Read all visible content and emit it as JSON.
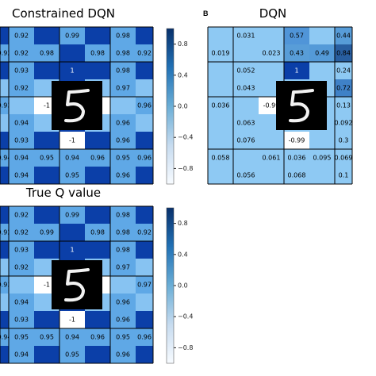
{
  "colors": {
    "background": "#ffffff",
    "grid_line": "#000000",
    "value_1": "#08306b",
    "value_0": "#ffffff",
    "value_neg1": "#ffffff",
    "digit_bg": "#000000",
    "digit_stroke": "#f2f2f2"
  },
  "chart_data": [
    {
      "type": "heatmap",
      "title": "Constrained DQN",
      "rows": [
        [
          null,
          "0.92",
          null,
          "0.99",
          null,
          "0.98",
          null
        ],
        [
          "0.92",
          "0.92",
          "0.98",
          null,
          "0.98",
          "0.98",
          "0.92"
        ],
        [
          null,
          "0.93",
          null,
          "1",
          null,
          "0.98",
          null
        ],
        [
          null,
          "0.92",
          null,
          null,
          null,
          "0.97",
          null
        ],
        [
          "0.93",
          null,
          "-1",
          null,
          "-1",
          null,
          "0.96"
        ],
        [
          null,
          "0.94",
          null,
          null,
          null,
          "0.96",
          null
        ],
        [
          null,
          "0.93",
          null,
          "-1",
          null,
          "0.96",
          null
        ],
        [
          "0.94",
          "0.94",
          "0.95",
          "0.94",
          "0.96",
          "0.95",
          "0.96"
        ],
        [
          null,
          "0.94",
          null,
          "0.95",
          null,
          "0.96",
          null
        ]
      ],
      "colorbar": {
        "ticks": [
          "0.8",
          "0.4",
          "0.0",
          "−0.4",
          "−0.8"
        ],
        "vmin": -1,
        "vmax": 1
      }
    },
    {
      "type": "heatmap",
      "title": "DQN",
      "panel_label": "B",
      "rows": [
        [
          null,
          "0.031",
          null,
          "0.57",
          null,
          "0.44",
          null
        ],
        [
          "0.019",
          null,
          "0.023",
          "0.43",
          "0.49",
          "0.84",
          null
        ],
        [
          null,
          "0.052",
          null,
          "1",
          null,
          "0.24",
          null
        ],
        [
          null,
          "0.043",
          null,
          null,
          null,
          "0.72",
          null
        ],
        [
          "0.036",
          null,
          "-0.99",
          null,
          null,
          "0.13",
          null
        ],
        [
          null,
          "0.063",
          null,
          null,
          null,
          "0.092",
          null
        ],
        [
          null,
          "0.076",
          null,
          "-0.99",
          null,
          "0.3",
          null
        ],
        [
          "0.058",
          null,
          "0.061",
          "0.036",
          "0.095",
          "0.069",
          "0.095"
        ],
        [
          null,
          "0.056",
          null,
          "0.068",
          null,
          "0.1",
          null
        ]
      ]
    },
    {
      "type": "heatmap",
      "title": "True Q value",
      "rows": [
        [
          null,
          "0.92",
          null,
          "0.99",
          null,
          "0.98",
          null
        ],
        [
          "0.92",
          "0.92",
          "0.99",
          null,
          "0.98",
          "0.98",
          "0.92"
        ],
        [
          null,
          "0.93",
          null,
          "1",
          null,
          "0.98",
          null
        ],
        [
          null,
          "0.92",
          null,
          null,
          null,
          "0.97",
          null
        ],
        [
          "0.93",
          null,
          "-1",
          null,
          "-1",
          null,
          "0.97"
        ],
        [
          null,
          "0.94",
          null,
          null,
          null,
          "0.96",
          null
        ],
        [
          null,
          "0.93",
          null,
          "-1",
          null,
          "0.96",
          null
        ],
        [
          "0.94",
          "0.95",
          "0.95",
          "0.94",
          "0.96",
          "0.95",
          "0.96"
        ],
        [
          null,
          "0.94",
          null,
          "0.95",
          null,
          "0.96",
          null
        ]
      ],
      "colorbar": {
        "ticks": [
          "0.8",
          "0.4",
          "0.0",
          "−0.4",
          "−0.8"
        ],
        "vmin": -1,
        "vmax": 1
      }
    }
  ]
}
